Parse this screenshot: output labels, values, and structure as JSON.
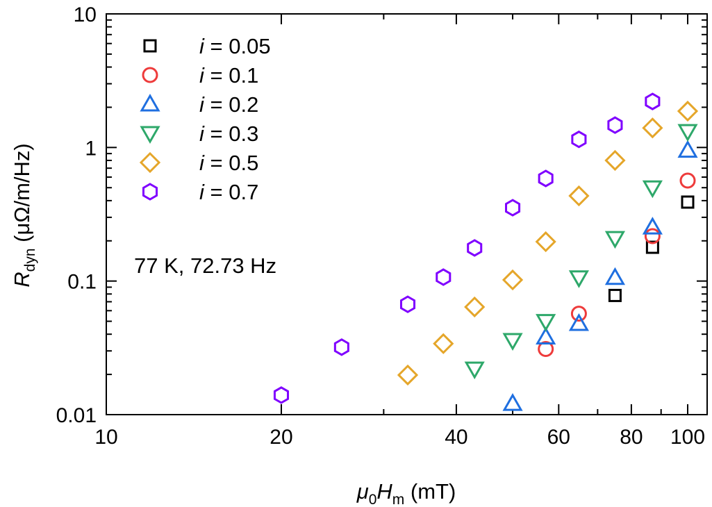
{
  "chart_data": {
    "type": "scatter",
    "xscale": "log",
    "yscale": "log",
    "xlim": [
      10,
      108
    ],
    "ylim": [
      0.01,
      10
    ],
    "xticks": [
      10,
      20,
      40,
      60,
      80,
      100
    ],
    "xtick_labels": [
      "10",
      "20",
      "40",
      "60",
      "80",
      "100"
    ],
    "yticks": [
      0.01,
      0.1,
      1,
      10
    ],
    "ytick_labels": [
      "0.01",
      "0.1",
      "1",
      "10"
    ],
    "xlabel": {
      "sym": "μ",
      "sub0": "0",
      "H": "H",
      "subm": "m",
      "unit": " (mT)"
    },
    "ylabel": {
      "R": "R",
      "sub": "dyn",
      "unit": " (μΩ/m/Hz)"
    },
    "annotation": "77 K, 72.73 Hz",
    "legend_position": "top-left",
    "series": [
      {
        "name": "i = 0.05",
        "i": "i",
        "label": " = 0.05",
        "marker": "square",
        "color": "#000000",
        "x": [
          75,
          87,
          100
        ],
        "y": [
          0.078,
          0.179,
          0.39
        ]
      },
      {
        "name": "i = 0.1",
        "i": "i",
        "label": " = 0.1",
        "marker": "circle",
        "color": "#ee3b3b",
        "x": [
          57,
          65,
          87,
          100
        ],
        "y": [
          0.031,
          0.057,
          0.217,
          0.565
        ]
      },
      {
        "name": "i = 0.2",
        "i": "i",
        "label": " = 0.2",
        "marker": "triangle-up",
        "color": "#1f6fe0",
        "x": [
          50,
          57,
          65,
          75,
          87,
          100
        ],
        "y": [
          0.0121,
          0.038,
          0.048,
          0.106,
          0.253,
          0.95
        ]
      },
      {
        "name": "i = 0.3",
        "i": "i",
        "label": " = 0.3",
        "marker": "triangle-down",
        "color": "#2ea86a",
        "x": [
          43,
          50,
          57,
          65,
          75,
          87,
          100
        ],
        "y": [
          0.022,
          0.036,
          0.05,
          0.106,
          0.209,
          0.5,
          1.32
        ]
      },
      {
        "name": "i = 0.5",
        "i": "i",
        "label": " = 0.5",
        "marker": "diamond",
        "color": "#e5a62a",
        "x": [
          33,
          38,
          43,
          50,
          57,
          65,
          75,
          87,
          100
        ],
        "y": [
          0.0198,
          0.034,
          0.064,
          0.102,
          0.197,
          0.434,
          0.8,
          1.4,
          1.87
        ]
      },
      {
        "name": "i = 0.7",
        "i": "i",
        "label": " = 0.7",
        "marker": "hexagon",
        "color": "#7f00ff",
        "x": [
          20,
          25.4,
          33,
          38,
          43,
          50,
          57,
          65,
          75,
          87
        ],
        "y": [
          0.014,
          0.032,
          0.067,
          0.107,
          0.177,
          0.354,
          0.586,
          1.15,
          1.47,
          2.21
        ]
      }
    ]
  }
}
